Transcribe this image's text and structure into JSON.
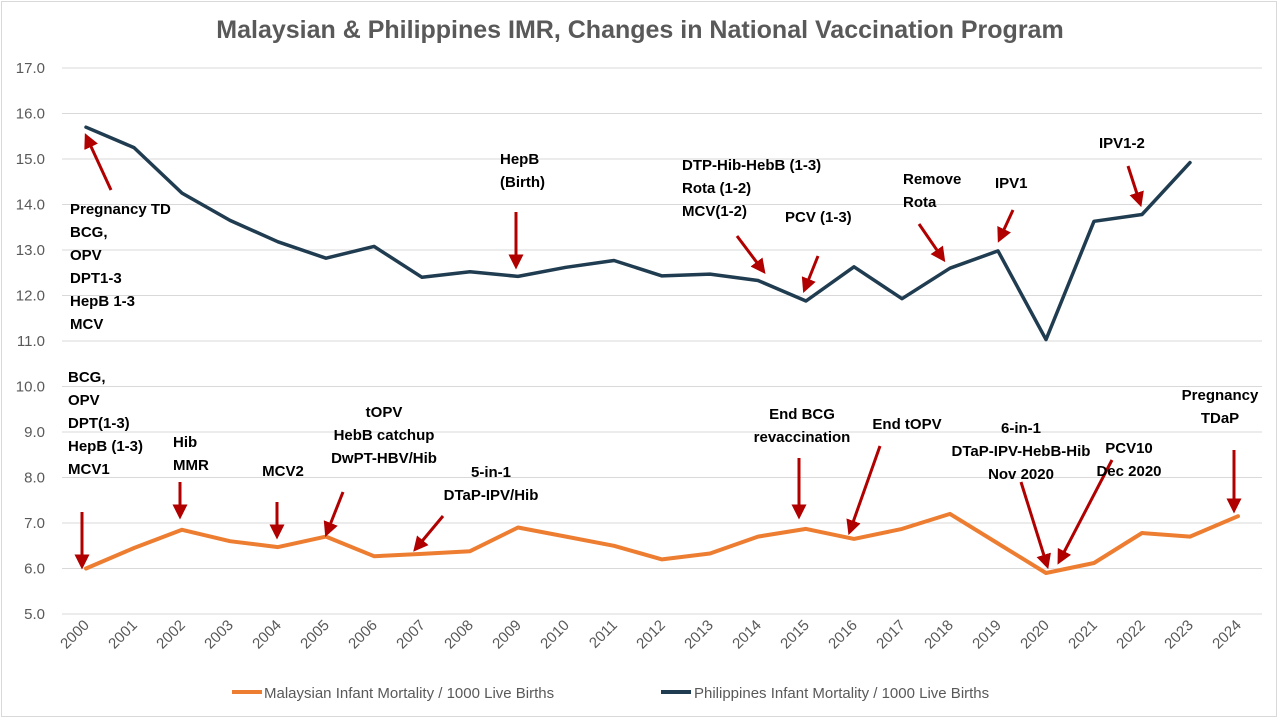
{
  "chart_data": {
    "type": "line",
    "title": "Malaysian & Philippines IMR, Changes in National Vaccination Program",
    "xlabel": "",
    "ylabel": "",
    "ylim": [
      5.0,
      17.0
    ],
    "yticks": [
      "5.0",
      "6.0",
      "7.0",
      "8.0",
      "9.0",
      "10.0",
      "11.0",
      "12.0",
      "13.0",
      "14.0",
      "15.0",
      "16.0",
      "17.0"
    ],
    "grid": true,
    "legend_position": "bottom",
    "x": [
      "2000",
      "2001",
      "2002",
      "2003",
      "2004",
      "2005",
      "2006",
      "2007",
      "2008",
      "2009",
      "2010",
      "2011",
      "2012",
      "2013",
      "2014",
      "2015",
      "2016",
      "2017",
      "2018",
      "2019",
      "2020",
      "2021",
      "2022",
      "2023",
      "2024"
    ],
    "series": [
      {
        "name": "Malaysian Infant Mortality / 1000 Live Births",
        "color": "#ed7d31",
        "values": [
          6.0,
          6.45,
          6.85,
          6.6,
          6.47,
          6.7,
          6.27,
          6.32,
          6.38,
          6.9,
          6.7,
          6.5,
          6.2,
          6.33,
          6.7,
          6.87,
          6.65,
          6.87,
          7.2,
          6.55,
          5.9,
          6.12,
          6.78,
          6.7,
          7.15
        ]
      },
      {
        "name": "Philippines Infant Mortality / 1000 Live Births",
        "color": "#203c50",
        "values": [
          15.7,
          15.25,
          14.25,
          13.65,
          13.18,
          12.82,
          13.08,
          12.4,
          12.52,
          12.42,
          12.62,
          12.77,
          12.43,
          12.47,
          12.33,
          11.88,
          12.63,
          11.93,
          12.6,
          12.98,
          11.03,
          13.63,
          13.78,
          14.92,
          null
        ]
      }
    ],
    "annotations": [
      {
        "id": "ph-pregnancy-td",
        "lines": [
          "Pregnancy TD",
          "BCG,",
          "OPV",
          "DPT1-3",
          "HepB 1-3",
          "MCV"
        ]
      },
      {
        "id": "ph-hepb-birth",
        "lines": [
          "HepB",
          "(Birth)"
        ]
      },
      {
        "id": "ph-dtp-hib-hebb",
        "lines": [
          "DTP-Hib-HebB (1-3)",
          "Rota (1-2)",
          "MCV(1-2)"
        ]
      },
      {
        "id": "ph-pcv",
        "lines": [
          "PCV (1-3)"
        ]
      },
      {
        "id": "ph-remove-rota",
        "lines": [
          "Remove",
          "Rota"
        ]
      },
      {
        "id": "ph-ipv1",
        "lines": [
          "IPV1"
        ]
      },
      {
        "id": "ph-ipv1-2",
        "lines": [
          "IPV1-2"
        ]
      },
      {
        "id": "my-bcg",
        "lines": [
          "BCG,",
          "OPV",
          "DPT(1-3)",
          "HepB (1-3)",
          "MCV1"
        ]
      },
      {
        "id": "my-hib-mmr",
        "lines": [
          "Hib",
          "MMR"
        ]
      },
      {
        "id": "my-mcv2",
        "lines": [
          "MCV2"
        ]
      },
      {
        "id": "my-topv",
        "lines": [
          "tOPV",
          "HebB catchup",
          "DwPT-HBV/Hib"
        ]
      },
      {
        "id": "my-5in1",
        "lines": [
          "5-in-1",
          "DTaP-IPV/Hib"
        ]
      },
      {
        "id": "my-end-bcg",
        "lines": [
          "End BCG",
          "revaccination"
        ]
      },
      {
        "id": "my-end-topv",
        "lines": [
          "End tOPV"
        ]
      },
      {
        "id": "my-6in1",
        "lines": [
          "6-in-1",
          "DTaP-IPV-HebB-Hib",
          "Nov 2020"
        ]
      },
      {
        "id": "my-pcv10",
        "lines": [
          "PCV10",
          "Dec 2020"
        ]
      },
      {
        "id": "my-pregnancy-tdap",
        "lines": [
          "Pregnancy",
          "TDaP"
        ]
      }
    ]
  },
  "colors": {
    "malaysia": "#ed7d31",
    "philippines": "#203c50",
    "arrow": "#b00000",
    "grid": "#d9d9d9",
    "text": "#595959"
  }
}
